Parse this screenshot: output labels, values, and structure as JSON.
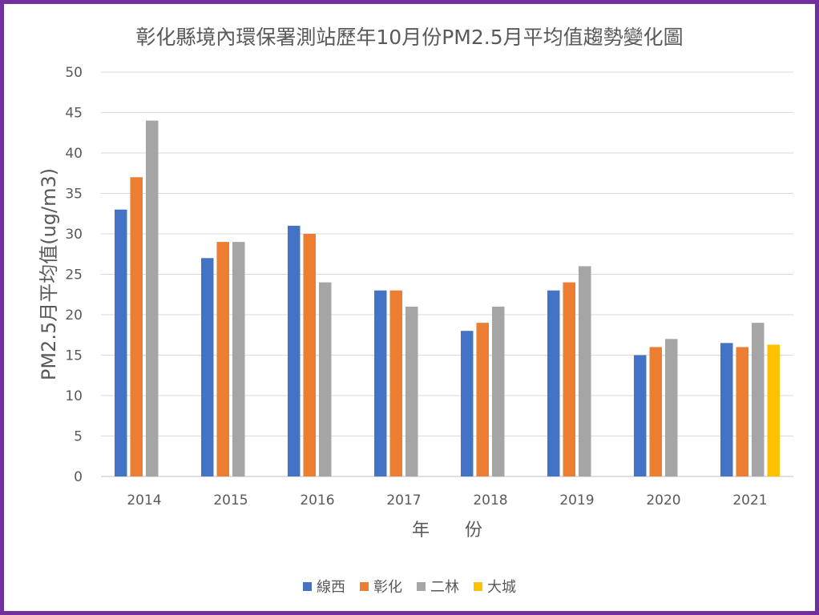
{
  "chart_data": {
    "type": "bar",
    "title": "彰化縣境內環保署測站歷年10月份PM2.5月平均值趨勢變化圖",
    "xlabel": "年　　份",
    "ylabel": "PM2.5月平均值(ug/m3)",
    "categories": [
      "2014",
      "2015",
      "2016",
      "2017",
      "2018",
      "2019",
      "2020",
      "2021"
    ],
    "ylim": [
      0,
      50
    ],
    "yticks": [
      0,
      5,
      10,
      15,
      20,
      25,
      30,
      35,
      40,
      45,
      50
    ],
    "grid": true,
    "legend_position": "bottom",
    "series": [
      {
        "name": "線西",
        "color": "#4472c4",
        "values": [
          33,
          27,
          31,
          23,
          18,
          23,
          15,
          16.5
        ]
      },
      {
        "name": "彰化",
        "color": "#ed7d31",
        "values": [
          37,
          29,
          30,
          23,
          19,
          24,
          16,
          16
        ]
      },
      {
        "name": "二林",
        "color": "#a5a5a5",
        "values": [
          44,
          29,
          24,
          21,
          21,
          26,
          17,
          19
        ]
      },
      {
        "name": "大城",
        "color": "#ffc000",
        "values": [
          null,
          null,
          null,
          null,
          null,
          null,
          null,
          16.3
        ]
      }
    ]
  }
}
